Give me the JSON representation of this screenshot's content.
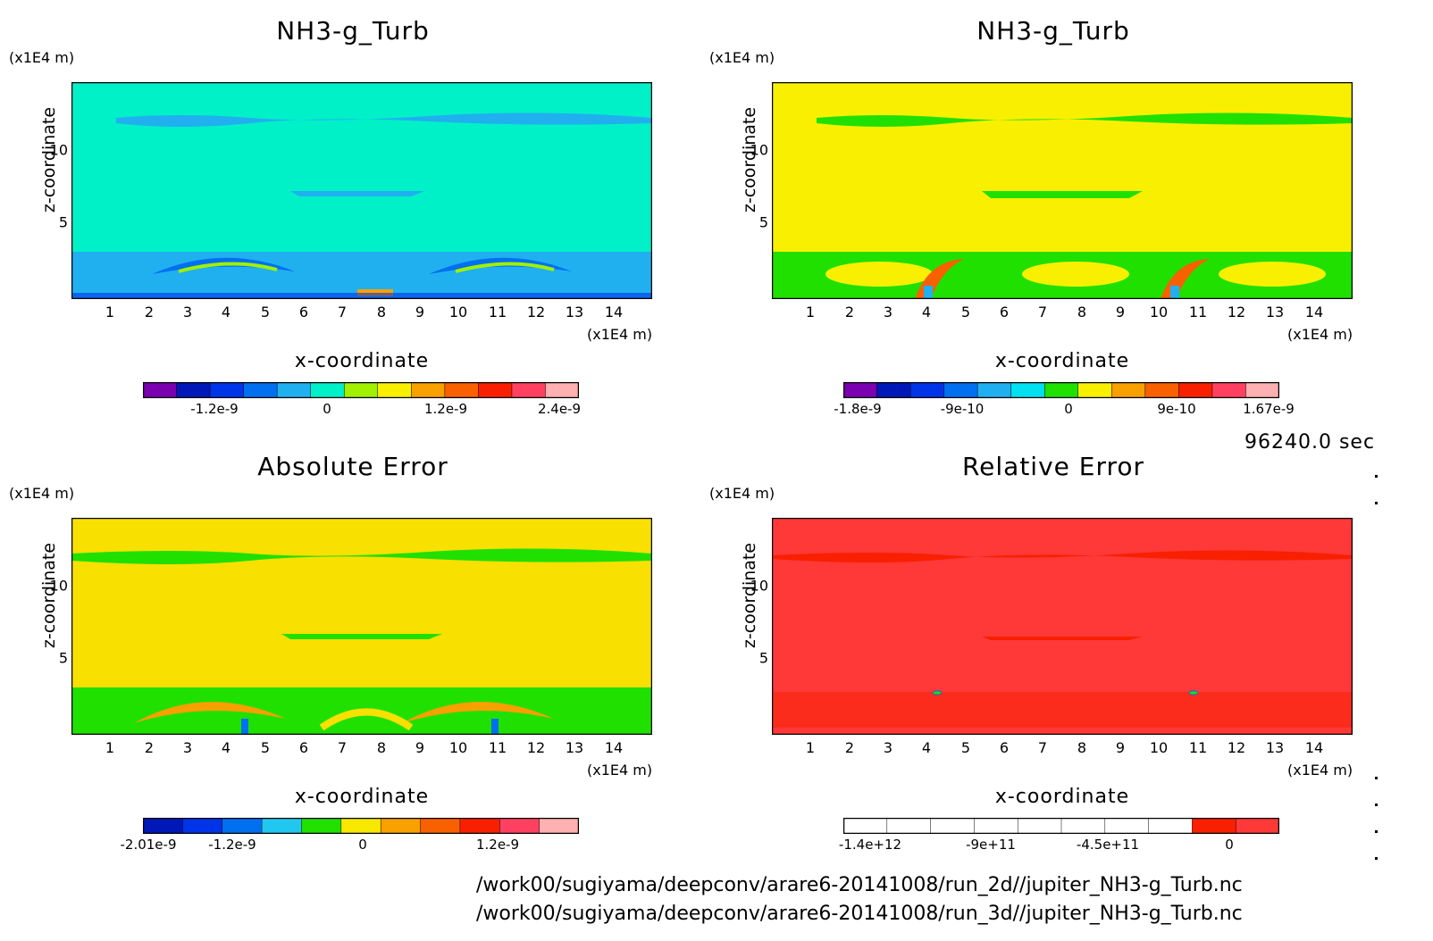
{
  "chart_data": [
    {
      "type": "heatmap",
      "title": "NH3-g_Turb",
      "xlabel": "x-coordinate",
      "ylabel": "z-coordinate",
      "x_unit": "(x1E4 m)",
      "y_unit": "(x1E4 m)",
      "xticks": [
        "1",
        "2",
        "3",
        "4",
        "5",
        "6",
        "7",
        "8",
        "9",
        "10",
        "11",
        "12",
        "13",
        "14"
      ],
      "yticks": [
        "5",
        "10"
      ],
      "xlim": [
        0,
        15
      ],
      "ylim": [
        0,
        15
      ],
      "colorbar_ticks": [
        "-1.2e-9",
        "0",
        "1.2e-9",
        "2.4e-9"
      ],
      "colorbar_colors": [
        "#7a00b0",
        "#0018b8",
        "#0034e8",
        "#0070f0",
        "#20b0f0",
        "#00f0c8",
        "#a0f000",
        "#f8f000",
        "#f8a000",
        "#f86000",
        "#f82000",
        "#ff4060",
        "#ffb0b0"
      ],
      "background_color": "#00f0c8"
    },
    {
      "type": "heatmap",
      "title": "NH3-g_Turb",
      "xlabel": "x-coordinate",
      "ylabel": "z-coordinate",
      "x_unit": "(x1E4 m)",
      "y_unit": "(x1E4 m)",
      "xticks": [
        "1",
        "2",
        "3",
        "4",
        "5",
        "6",
        "7",
        "8",
        "9",
        "10",
        "11",
        "12",
        "13",
        "14"
      ],
      "yticks": [
        "5",
        "10"
      ],
      "xlim": [
        0,
        15
      ],
      "ylim": [
        0,
        15
      ],
      "colorbar_ticks": [
        "-1.8e-9",
        "-9e-10",
        "0",
        "9e-10",
        "1.67e-9"
      ],
      "colorbar_colors": [
        "#7a00b0",
        "#0018b8",
        "#0034e8",
        "#0070f0",
        "#20b0f0",
        "#00e0f0",
        "#20e000",
        "#f8f000",
        "#f8a000",
        "#f86000",
        "#f82000",
        "#ff4060",
        "#ffb0b0"
      ],
      "background_color": "#f8f000"
    },
    {
      "type": "heatmap",
      "title": "Absolute Error",
      "xlabel": "x-coordinate",
      "ylabel": "z-coordinate",
      "x_unit": "(x1E4 m)",
      "y_unit": "(x1E4 m)",
      "xticks": [
        "1",
        "2",
        "3",
        "4",
        "5",
        "6",
        "7",
        "8",
        "9",
        "10",
        "11",
        "12",
        "13",
        "14"
      ],
      "yticks": [
        "5",
        "10"
      ],
      "xlim": [
        0,
        15
      ],
      "ylim": [
        0,
        15
      ],
      "colorbar_ticks": [
        "-2.01e-9",
        "-1.2e-9",
        "0",
        "1.2e-9"
      ],
      "colorbar_colors": [
        "#0018b8",
        "#0034e8",
        "#0070f0",
        "#20c8f0",
        "#20e000",
        "#f8e800",
        "#f8a000",
        "#f86000",
        "#f82000",
        "#ff4060",
        "#ffb0b0"
      ],
      "background_color": "#f8e000"
    },
    {
      "type": "heatmap",
      "title": "Relative Error",
      "xlabel": "x-coordinate",
      "ylabel": "z-coordinate",
      "x_unit": "(x1E4 m)",
      "y_unit": "(x1E4 m)",
      "xticks": [
        "1",
        "2",
        "3",
        "4",
        "5",
        "6",
        "7",
        "8",
        "9",
        "10",
        "11",
        "12",
        "13",
        "14"
      ],
      "yticks": [
        "5",
        "10"
      ],
      "xlim": [
        0,
        15
      ],
      "ylim": [
        0,
        15
      ],
      "colorbar_ticks": [
        "-1.4e+12",
        "-9e+11",
        "-4.5e+11",
        "0"
      ],
      "colorbar_colors": [
        "#ffffff",
        "#ffffff",
        "#ffffff",
        "#ffffff",
        "#ffffff",
        "#ffffff",
        "#ffffff",
        "#ffffff",
        "#f82000",
        "#ff3838"
      ],
      "background_color": "#ff3838"
    }
  ],
  "time_label": "96240.0 sec",
  "file_paths": [
    "/work00/sugiyama/deepconv/arare6-20141008/run_2d//jupiter_NH3-g_Turb.nc",
    "/work00/sugiyama/deepconv/arare6-20141008/run_3d//jupiter_NH3-g_Turb.nc"
  ]
}
